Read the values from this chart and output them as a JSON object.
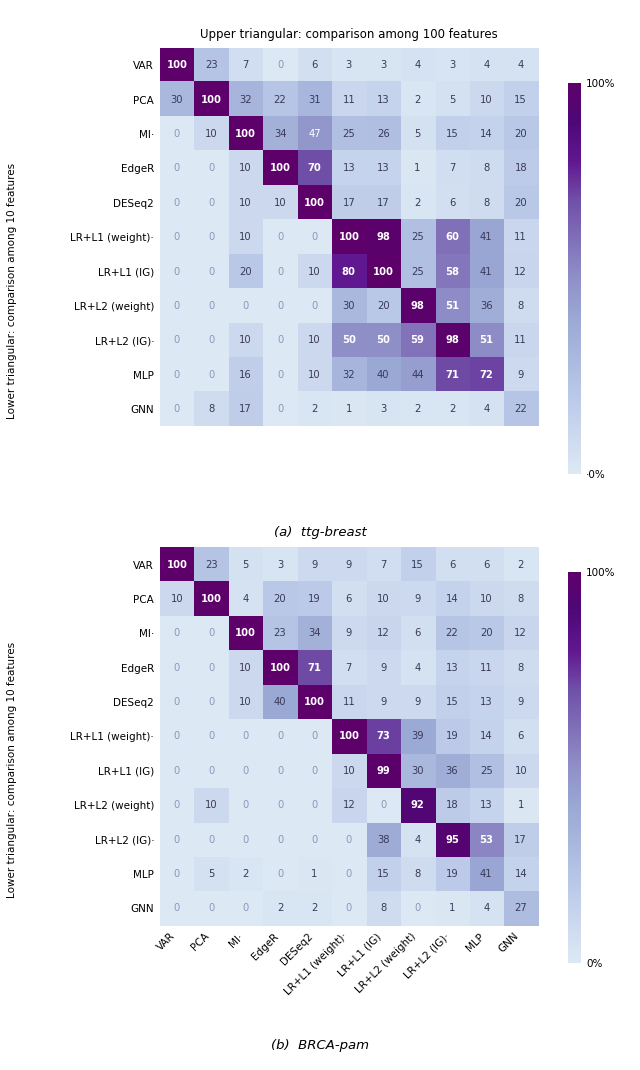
{
  "matrix_a": [
    [
      100,
      23,
      7,
      0,
      6,
      3,
      3,
      4,
      3,
      4,
      4
    ],
    [
      30,
      100,
      32,
      22,
      31,
      11,
      13,
      2,
      5,
      10,
      15
    ],
    [
      0,
      10,
      100,
      34,
      47,
      25,
      26,
      5,
      15,
      14,
      20
    ],
    [
      0,
      0,
      10,
      100,
      70,
      13,
      13,
      1,
      7,
      8,
      18
    ],
    [
      0,
      0,
      10,
      10,
      100,
      17,
      17,
      2,
      6,
      8,
      20
    ],
    [
      0,
      0,
      10,
      0,
      0,
      100,
      98,
      25,
      60,
      41,
      11
    ],
    [
      0,
      0,
      20,
      0,
      10,
      80,
      100,
      25,
      58,
      41,
      12
    ],
    [
      0,
      0,
      0,
      0,
      0,
      30,
      20,
      98,
      51,
      36,
      8
    ],
    [
      0,
      0,
      10,
      0,
      10,
      50,
      50,
      59,
      98,
      51,
      11
    ],
    [
      0,
      0,
      16,
      0,
      10,
      32,
      40,
      44,
      71,
      72,
      9
    ],
    [
      0,
      8,
      17,
      0,
      2,
      1,
      3,
      2,
      2,
      4,
      22
    ]
  ],
  "matrix_b": [
    [
      100,
      23,
      5,
      3,
      9,
      9,
      7,
      15,
      6,
      6,
      2
    ],
    [
      10,
      100,
      4,
      20,
      19,
      6,
      10,
      9,
      14,
      10,
      8
    ],
    [
      0,
      0,
      100,
      23,
      34,
      9,
      12,
      6,
      22,
      20,
      12
    ],
    [
      0,
      0,
      10,
      100,
      71,
      7,
      9,
      4,
      13,
      11,
      8
    ],
    [
      0,
      0,
      10,
      40,
      100,
      11,
      9,
      9,
      15,
      13,
      9
    ],
    [
      0,
      0,
      0,
      0,
      0,
      100,
      73,
      39,
      19,
      14,
      6
    ],
    [
      0,
      0,
      0,
      0,
      0,
      10,
      99,
      30,
      36,
      25,
      10
    ],
    [
      0,
      10,
      0,
      0,
      0,
      12,
      0,
      92,
      18,
      13,
      1
    ],
    [
      0,
      0,
      0,
      0,
      0,
      0,
      38,
      4,
      95,
      53,
      17
    ],
    [
      0,
      5,
      2,
      0,
      1,
      0,
      15,
      8,
      19,
      41,
      14
    ],
    [
      0,
      0,
      0,
      2,
      2,
      0,
      8,
      0,
      1,
      4,
      27
    ]
  ],
  "title_a": "(a)  ttg-breast",
  "title_b": "(b)  BRCA-pam",
  "top_label": "Upper triangular: comparison among 100 features",
  "left_label": "Lower triangular: comparison among 10 features",
  "vmin": 0,
  "vmax": 100,
  "bold_thresh": 50,
  "white_thresh": 45,
  "row_labels": [
    "VAR",
    "PCA",
    "MI·",
    "EdgeR",
    "DESeq2",
    "LR+L1 (weight)·",
    "LR+L1 (IG)",
    "LR+L2 (weight)",
    "LR+L2 (IG)·",
    "MLP",
    "GNN"
  ],
  "col_labels": [
    "VAR",
    "PCA",
    "MI·",
    "EdgeR",
    "DESeq2",
    "LR+L1 (weight)·",
    "LR+L1 (IG)",
    "LR+L2 (weight)",
    "LR+L2 (IG)·",
    "MLP",
    "GNN"
  ],
  "cmap_colors": [
    "#dde8f0",
    "#c5d5e8",
    "#b0c4de",
    "#a8b8d8",
    "#9eaece",
    "#9090c0",
    "#8878b8",
    "#7860a8",
    "#6a4898",
    "#5e3088",
    "#520878",
    "#4b0082",
    "#6a0dad",
    "#7b0fb5",
    "#8b0fc8"
  ],
  "figsize": [
    6.4,
    10.7
  ],
  "text_dark": "#3a3a5a",
  "text_mid": "#666688",
  "text_light": "white"
}
